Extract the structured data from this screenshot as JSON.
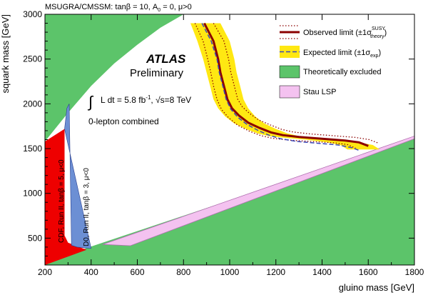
{
  "header": {
    "model_prefix": "MSUGRA/CMSSM: tan",
    "beta": "β",
    "eq10": " = 10, A",
    "sub0": "0",
    "rest": " = 0, μ>0"
  },
  "atlas": {
    "name": "ATLAS",
    "status": "Preliminary"
  },
  "lumi": {
    "integral": "∫",
    "text1": "L dt = 5.8 fb",
    "sup": "-1",
    "text2": ",   √s=8 TeV"
  },
  "channel": "0-lepton combined",
  "colors": {
    "green": "#5cc46a",
    "yellow": "#ffe812",
    "observed": "#8b0000",
    "expected": "#3a47b8",
    "cdf": "#ee0000",
    "d0": "#6c8fd4",
    "stau": "#f4c2f0",
    "stau_edge": "#b070b0"
  },
  "legend": {
    "observed": {
      "main": "Observed limit (±1σ",
      "sup": "SUSY",
      "sub": "theory",
      "close": ")"
    },
    "expected": {
      "main": "Expected limit (±1σ",
      "sub": "exp",
      "close": ")"
    },
    "excluded": "Theoretically excluded",
    "stau": "Stau LSP"
  },
  "labels": {
    "cdf": "CDF, Run II, tanβ = 5, μ<0",
    "d0": "D0, Run II, tanβ = 3, μ<0"
  },
  "chart_data": {
    "type": "line",
    "xlabel": "gluino mass [GeV]",
    "ylabel": "squark mass [GeV]",
    "xlim": [
      200,
      1800
    ],
    "ylim": [
      200,
      3000
    ],
    "xticks": [
      200,
      400,
      600,
      800,
      1000,
      1200,
      1400,
      1600,
      1800
    ],
    "yticks": [
      500,
      1000,
      1500,
      2000,
      2500,
      3000
    ],
    "grid": false,
    "legend_position": "top-right",
    "series": [
      {
        "name": "Observed limit",
        "x": [
          890,
          930,
          950,
          960,
          975,
          990,
          1010,
          1040,
          1080,
          1130,
          1180,
          1230,
          1300,
          1400,
          1500,
          1560,
          1600
        ],
        "y": [
          2900,
          2700,
          2500,
          2350,
          2200,
          2050,
          1950,
          1870,
          1790,
          1730,
          1680,
          1650,
          1630,
          1610,
          1590,
          1570,
          1530
        ]
      },
      {
        "name": "Expected limit",
        "x": [
          880,
          920,
          945,
          955,
          970,
          985,
          1005,
          1035,
          1075,
          1125,
          1170,
          1220,
          1290,
          1380,
          1470,
          1530,
          1560
        ],
        "y": [
          2900,
          2700,
          2500,
          2350,
          2200,
          2050,
          1940,
          1850,
          1770,
          1700,
          1650,
          1610,
          1580,
          1560,
          1540,
          1510,
          1480
        ]
      },
      {
        "name": "Observed -1σ theory",
        "x": [
          850,
          885,
          905,
          918,
          930,
          945,
          965,
          995,
          1035,
          1085,
          1135,
          1185,
          1255,
          1350,
          1450,
          1510,
          1545
        ],
        "y": [
          2900,
          2700,
          2500,
          2350,
          2200,
          2050,
          1935,
          1845,
          1760,
          1695,
          1645,
          1615,
          1595,
          1580,
          1565,
          1545,
          1505
        ]
      },
      {
        "name": "Observed +1σ theory",
        "x": [
          930,
          975,
          995,
          1005,
          1020,
          1035,
          1055,
          1085,
          1125,
          1175,
          1225,
          1275,
          1345,
          1445,
          1545,
          1605,
          1645
        ],
        "y": [
          2900,
          2700,
          2500,
          2350,
          2200,
          2050,
          1965,
          1895,
          1820,
          1765,
          1715,
          1685,
          1665,
          1645,
          1625,
          1600,
          1560
        ]
      },
      {
        "name": "Expected ±1σ band",
        "x_lower": [
          830,
          860,
          885,
          900,
          915,
          930,
          950,
          980,
          1020,
          1070,
          1120,
          1170,
          1240,
          1330,
          1420,
          1480,
          1510
        ],
        "x_upper": [
          960,
          1000,
          1020,
          1030,
          1045,
          1060,
          1080,
          1110,
          1150,
          1200,
          1250,
          1300,
          1370,
          1470,
          1560,
          1620,
          1650
        ],
        "y": [
          2900,
          2700,
          2500,
          2350,
          2200,
          2050,
          1950,
          1860,
          1780,
          1720,
          1670,
          1640,
          1620,
          1600,
          1570,
          1540,
          1490
        ]
      }
    ],
    "regions": [
      {
        "name": "Theoretically excluded (upper)",
        "boundary_x": [
          200,
          300,
          400,
          500,
          600,
          700,
          800
        ],
        "boundary_y": [
          1580,
          1900,
          2200,
          2450,
          2660,
          2850,
          3000
        ]
      },
      {
        "name": "Theoretically excluded (lower)",
        "edge": [
          [
            370,
            380
          ],
          [
            1800,
            1610
          ]
        ]
      },
      {
        "name": "Stau LSP",
        "edge": [
          [
            450,
            430
          ],
          [
            1800,
            1640
          ]
        ]
      },
      {
        "name": "CDF, Run II, tanβ = 5, μ<0",
        "x": [
          200,
          200,
          285,
          285,
          300,
          380
        ],
        "y": [
          200,
          1580,
          1720,
          530,
          450,
          370
        ]
      },
      {
        "name": "D0, Run II, tanβ = 3, μ<0",
        "x": [
          285,
          295,
          305,
          315,
          340,
          400
        ],
        "y": [
          1720,
          1950,
          2000,
          420,
          400,
          385
        ]
      }
    ]
  }
}
